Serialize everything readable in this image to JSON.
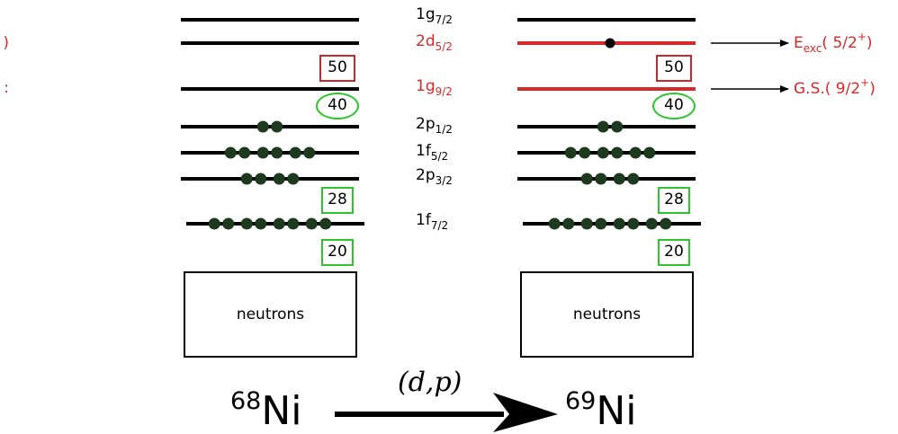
{
  "colors": {
    "level": "#000000",
    "red_level": "#d42a2a",
    "dot": "#1e3a1e",
    "magic_red": "#c82828",
    "magic_green": "#2fc42f"
  },
  "orbitals": [
    {
      "name": "1g",
      "sub": "7/2",
      "highlight": false
    },
    {
      "name": "2d",
      "sub": "5/2",
      "highlight": true
    },
    {
      "name": "1g",
      "sub": "9/2",
      "highlight": true
    },
    {
      "name": "2p",
      "sub": "1/2",
      "highlight": false
    },
    {
      "name": "1f",
      "sub": "5/2",
      "highlight": false
    },
    {
      "name": "2p",
      "sub": "3/2",
      "highlight": false
    },
    {
      "name": "1f",
      "sub": "7/2",
      "highlight": false
    }
  ],
  "magic_numbers": {
    "n50": "50",
    "n40": "40",
    "n28": "28",
    "n20": "20"
  },
  "occupancy": {
    "ni68": {
      "1g7/2": 0,
      "2d5/2": 0,
      "1g9/2": 0,
      "2p1/2": 2,
      "1f5/2": 6,
      "2p3/2": 4,
      "1f7/2": 8
    },
    "ni69": {
      "1g7/2": 0,
      "2d5/2": 1,
      "1g9/2": 0,
      "2p1/2": 2,
      "1f5/2": 6,
      "2p3/2": 4,
      "1f7/2": 8
    }
  },
  "core_label": "neutrons",
  "nuclei": {
    "left": {
      "mass": "68",
      "symbol": "Ni"
    },
    "right": {
      "mass": "69",
      "symbol": "Ni"
    }
  },
  "reaction": "(d,p)",
  "annotations": {
    "exc": {
      "main": "E",
      "sub": "exc",
      "open": "( 5/2",
      "sup": "+",
      "close": ")"
    },
    "gs": {
      "main": "G.S.( 9/2",
      "sup": "+",
      "close": ")"
    }
  },
  "edge_fragments": {
    "top": "(",
    "bottom": ":"
  }
}
